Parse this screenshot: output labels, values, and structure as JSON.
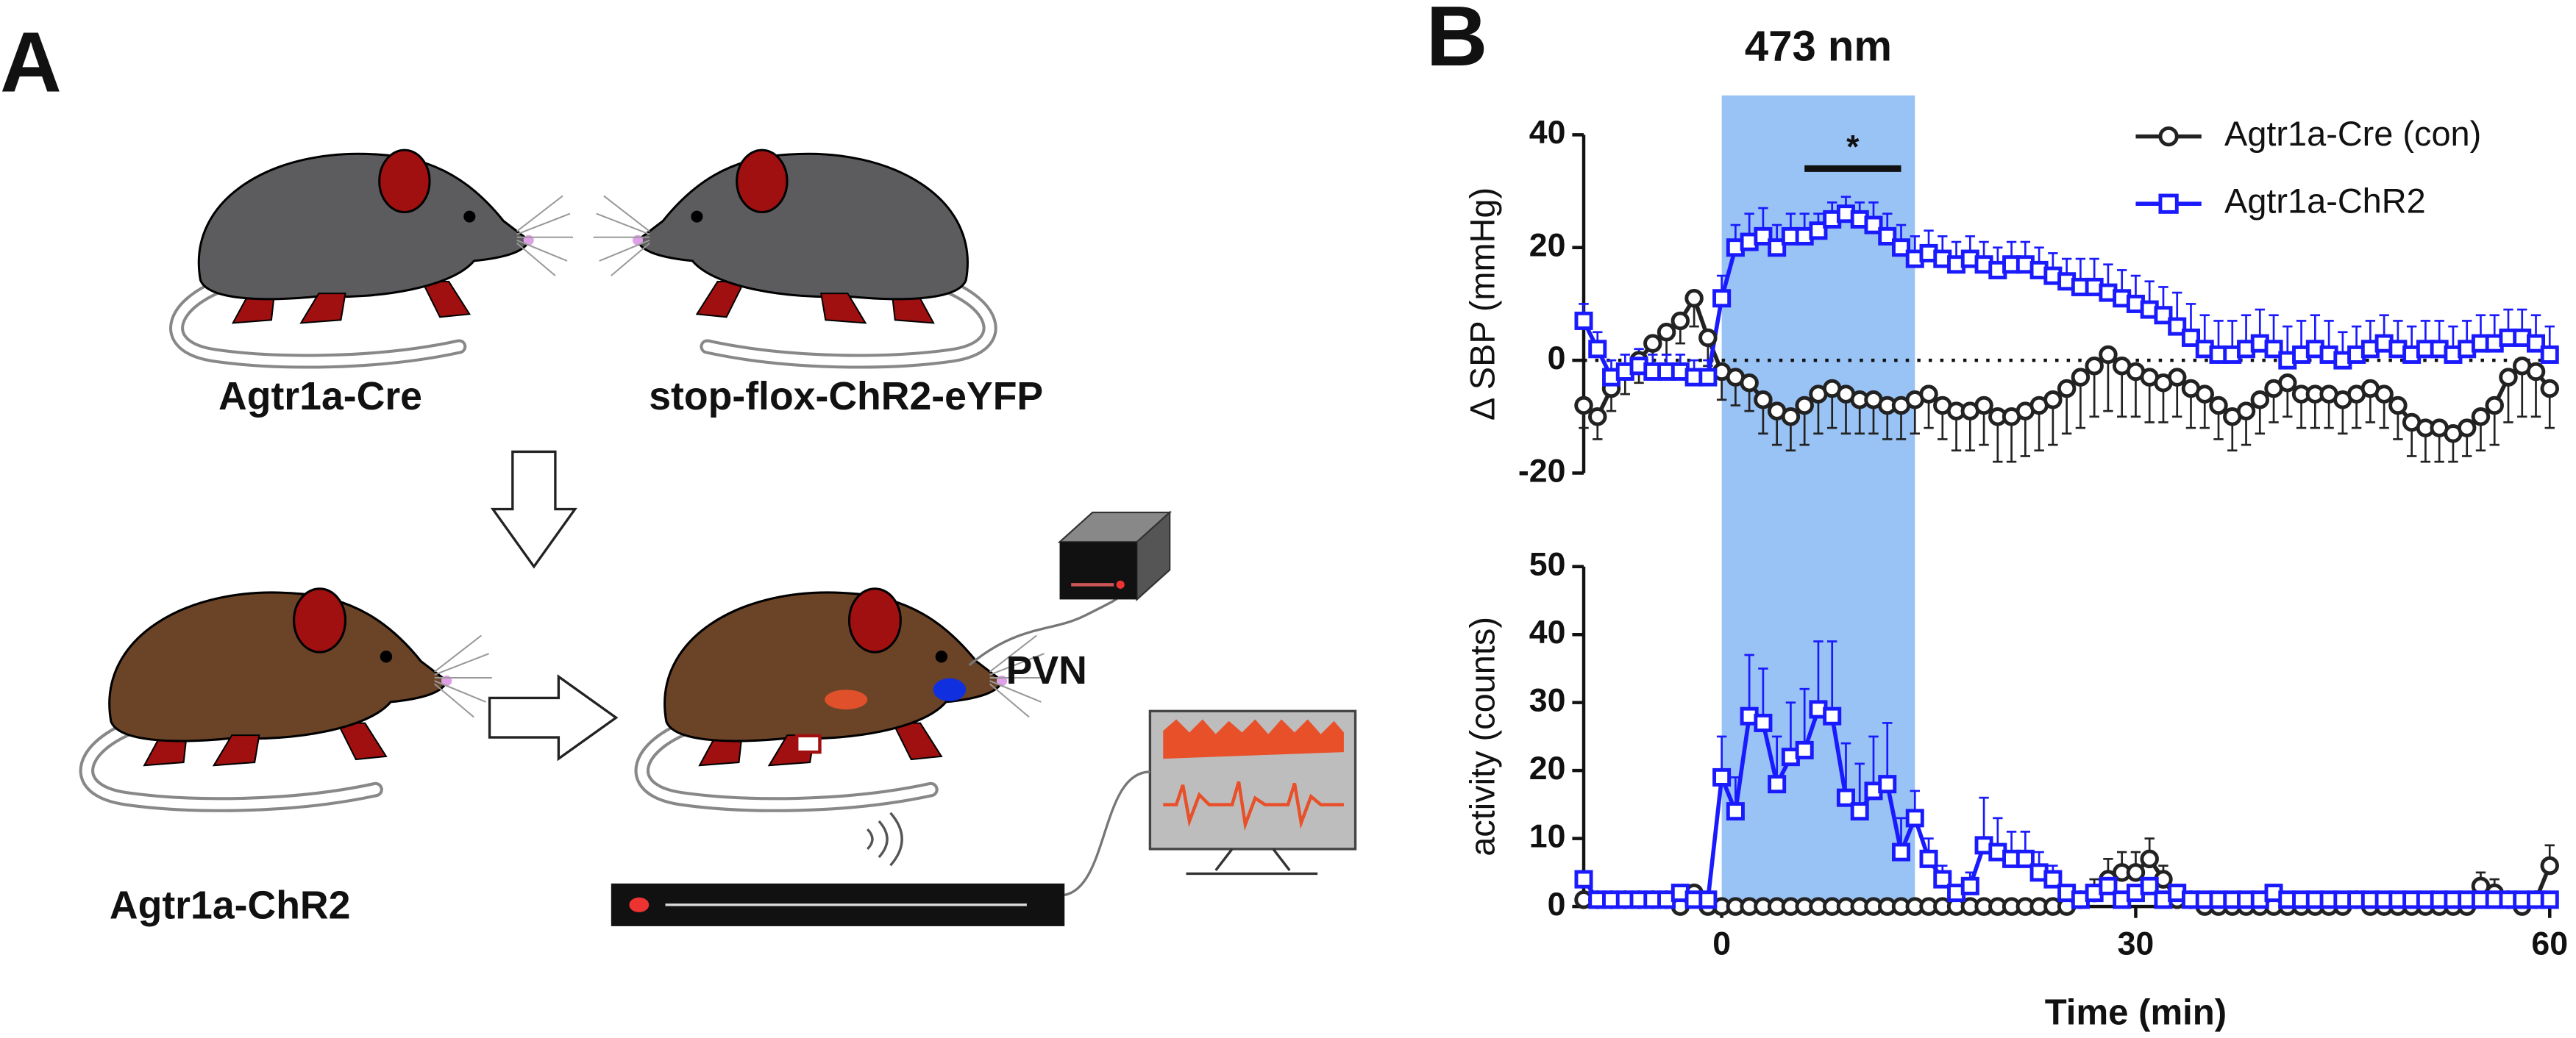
{
  "figure": {
    "panel_a": {
      "label": "A",
      "mouse_labels": [
        "Agtr1a-Cre",
        "stop-flox-ChR2-eYFP",
        "Agtr1a-ChR2"
      ],
      "region_label": "PVN"
    },
    "panel_b": {
      "label": "B"
    }
  },
  "chart_data": [
    {
      "type": "line",
      "title": "473 nm",
      "ylabel": "Δ SBP (mmHg)",
      "x": [
        -10,
        -9,
        -8,
        -7,
        -6,
        -5,
        -4,
        -3,
        -2,
        -1,
        0,
        1,
        2,
        3,
        4,
        5,
        6,
        7,
        8,
        9,
        10,
        11,
        12,
        13,
        14,
        15,
        16,
        17,
        18,
        19,
        20,
        21,
        22,
        23,
        24,
        25,
        26,
        27,
        28,
        29,
        30,
        31,
        32,
        33,
        34,
        35,
        36,
        37,
        38,
        39,
        40,
        41,
        42,
        43,
        44,
        45,
        46,
        47,
        48,
        49,
        50,
        51,
        52,
        53,
        54,
        55,
        56,
        57,
        58,
        59,
        60
      ],
      "xlim": [
        -10,
        60
      ],
      "ylim": [
        -20,
        40
      ],
      "yticks": [
        -20,
        0,
        20,
        40
      ],
      "shade": [
        0,
        14
      ],
      "shade_color": "#99c2f5",
      "reference_line": 0,
      "sig_range": [
        6,
        13
      ],
      "sig_y": 34,
      "sig_label": "*",
      "legend": "top-right",
      "series": [
        {
          "name": "Agtr1a-Cre (con)",
          "color": "#222222",
          "marker": "circle",
          "error_direction": "down",
          "values": [
            -8,
            -10,
            -5,
            -2,
            0,
            3,
            5,
            7,
            11,
            4,
            -2,
            -3,
            -4,
            -7,
            -9,
            -10,
            -8,
            -6,
            -5,
            -6,
            -7,
            -7,
            -8,
            -8,
            -7,
            -6,
            -8,
            -9,
            -9,
            -8,
            -10,
            -10,
            -9,
            -8,
            -7,
            -5,
            -3,
            -1,
            1,
            -1,
            -2,
            -3,
            -4,
            -3,
            -5,
            -6,
            -8,
            -10,
            -9,
            -7,
            -5,
            -4,
            -6,
            -6,
            -6,
            -7,
            -6,
            -5,
            -6,
            -8,
            -11,
            -12,
            -12,
            -13,
            -12,
            -10,
            -8,
            -3,
            -1,
            -2,
            -5
          ],
          "errors": [
            4,
            4,
            4,
            4,
            4,
            4,
            4,
            4,
            5,
            5,
            5,
            5,
            5,
            6,
            6,
            6,
            7,
            7,
            7,
            7,
            6,
            6,
            6,
            6,
            6,
            6,
            6,
            7,
            7,
            7,
            8,
            8,
            8,
            8,
            8,
            8,
            9,
            9,
            10,
            9,
            8,
            8,
            7,
            7,
            7,
            6,
            6,
            6,
            6,
            6,
            6,
            6,
            6,
            6,
            6,
            6,
            6,
            6,
            6,
            6,
            6,
            6,
            6,
            5,
            5,
            6,
            7,
            8,
            9,
            8,
            7
          ]
        },
        {
          "name": "Agtr1a-ChR2",
          "color": "#1a1aff",
          "marker": "square",
          "error_direction": "up",
          "values": [
            7,
            2,
            -3,
            -2,
            -1,
            -2,
            -2,
            -2,
            -3,
            -3,
            11,
            20,
            21,
            22,
            20,
            22,
            22,
            23,
            25,
            26,
            25,
            24,
            22,
            20,
            18,
            19,
            18,
            17,
            18,
            17,
            16,
            17,
            17,
            16,
            15,
            14,
            13,
            13,
            12,
            11,
            10,
            9,
            8,
            6,
            4,
            2,
            1,
            1,
            2,
            3,
            2,
            0,
            1,
            2,
            1,
            0,
            1,
            2,
            3,
            2,
            1,
            2,
            2,
            1,
            2,
            3,
            3,
            4,
            4,
            3,
            1
          ],
          "errors": [
            3,
            3,
            3,
            3,
            3,
            3,
            3,
            3,
            3,
            3,
            4,
            4,
            5,
            5,
            4,
            4,
            4,
            3,
            3,
            3,
            3,
            4,
            4,
            4,
            4,
            4,
            4,
            4,
            4,
            4,
            4,
            4,
            4,
            4,
            4,
            4,
            5,
            5,
            5,
            5,
            5,
            5,
            5,
            6,
            6,
            6,
            6,
            6,
            6,
            6,
            6,
            6,
            6,
            6,
            6,
            5,
            5,
            5,
            5,
            5,
            5,
            5,
            5,
            5,
            5,
            5,
            5,
            5,
            5,
            5,
            5
          ]
        }
      ]
    },
    {
      "type": "line",
      "ylabel": "activity (counts)",
      "xlabel": "Time (min)",
      "x": [
        -10,
        -9,
        -8,
        -7,
        -6,
        -5,
        -4,
        -3,
        -2,
        -1,
        0,
        1,
        2,
        3,
        4,
        5,
        6,
        7,
        8,
        9,
        10,
        11,
        12,
        13,
        14,
        15,
        16,
        17,
        18,
        19,
        20,
        21,
        22,
        23,
        24,
        25,
        26,
        27,
        28,
        29,
        30,
        31,
        32,
        33,
        34,
        35,
        36,
        37,
        38,
        39,
        40,
        41,
        42,
        43,
        44,
        45,
        46,
        47,
        48,
        49,
        50,
        51,
        52,
        53,
        54,
        55,
        56,
        57,
        58,
        59,
        60
      ],
      "xlim": [
        -10,
        60
      ],
      "ylim": [
        0,
        50
      ],
      "yticks": [
        0,
        10,
        20,
        30,
        40,
        50
      ],
      "xticks": [
        0,
        30,
        60
      ],
      "series": [
        {
          "color": "#222222",
          "marker": "circle",
          "error_direction": "up",
          "values": [
            1,
            1,
            1,
            1,
            1,
            1,
            1,
            0,
            2,
            0,
            0,
            0,
            0,
            0,
            0,
            0,
            0,
            0,
            0,
            0,
            0,
            0,
            0,
            0,
            0,
            0,
            0,
            0,
            0,
            0,
            0,
            0,
            0,
            0,
            0,
            0,
            1,
            2,
            4,
            5,
            5,
            7,
            4,
            1,
            1,
            0,
            0,
            0,
            0,
            0,
            0,
            0,
            0,
            0,
            0,
            0,
            1,
            0,
            0,
            0,
            0,
            0,
            0,
            0,
            0,
            3,
            2,
            1,
            0,
            1,
            6
          ],
          "errors": [
            1,
            1,
            1,
            1,
            1,
            1,
            1,
            1,
            1,
            1,
            0,
            0,
            0,
            0,
            0,
            0,
            0,
            0,
            0,
            0,
            0,
            0,
            0,
            0,
            0,
            0,
            0,
            0,
            0,
            0,
            0,
            0,
            0,
            0,
            0,
            0,
            1,
            2,
            3,
            3,
            3,
            3,
            2,
            1,
            1,
            0,
            0,
            0,
            0,
            0,
            0,
            0,
            0,
            0,
            0,
            0,
            0,
            0,
            0,
            0,
            0,
            0,
            0,
            0,
            0,
            2,
            2,
            1,
            0,
            1,
            3
          ]
        },
        {
          "color": "#1a1aff",
          "marker": "square",
          "error_direction": "up",
          "values": [
            4,
            1,
            1,
            1,
            1,
            1,
            1,
            2,
            1,
            1,
            19,
            14,
            28,
            27,
            18,
            22,
            23,
            29,
            28,
            16,
            14,
            17,
            18,
            8,
            13,
            7,
            4,
            2,
            3,
            9,
            8,
            7,
            7,
            5,
            4,
            2,
            1,
            2,
            3,
            1,
            2,
            3,
            1,
            2,
            1,
            1,
            1,
            1,
            1,
            1,
            2,
            1,
            1,
            1,
            1,
            1,
            1,
            1,
            1,
            1,
            1,
            1,
            1,
            1,
            1,
            1,
            1,
            1,
            1,
            1,
            1
          ],
          "errors": [
            1,
            1,
            1,
            1,
            1,
            1,
            1,
            1,
            1,
            1,
            6,
            5,
            9,
            8,
            7,
            8,
            9,
            10,
            11,
            8,
            7,
            8,
            9,
            5,
            4,
            3,
            2,
            1,
            2,
            7,
            5,
            4,
            4,
            3,
            2,
            1,
            1,
            1,
            1,
            1,
            1,
            1,
            1,
            1,
            1,
            1,
            1,
            1,
            1,
            1,
            1,
            1,
            1,
            1,
            1,
            1,
            1,
            1,
            1,
            1,
            1,
            1,
            1,
            1,
            1,
            1,
            1,
            1,
            1,
            1,
            1
          ]
        }
      ]
    }
  ]
}
